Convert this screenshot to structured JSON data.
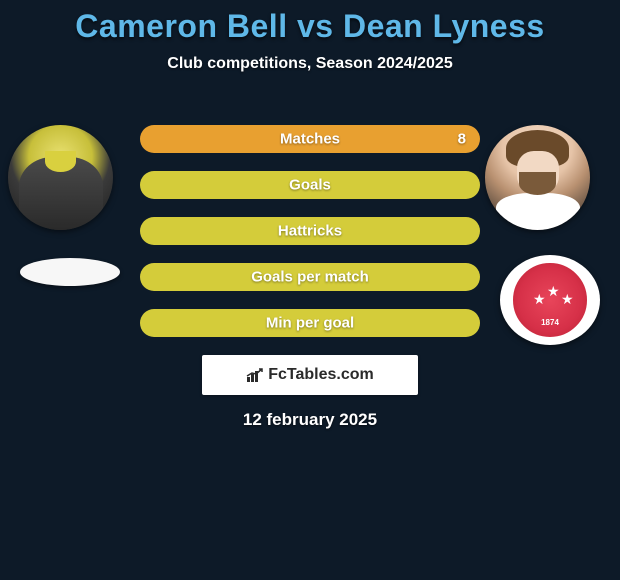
{
  "title": "Cameron Bell vs Dean Lyness",
  "subtitle": "Club competitions, Season 2024/2025",
  "date": "12 february 2025",
  "watermark": "FcTables.com",
  "colors": {
    "background": "#0d1a28",
    "title": "#5fb8e8",
    "subtitle": "#ffffff",
    "date": "#ffffff",
    "bar_default": "#d4cc3a",
    "bar_highlight": "#e8a030",
    "bar_text": "#ffffff"
  },
  "typography": {
    "title_fontsize": 32,
    "subtitle_fontsize": 16,
    "bar_label_fontsize": 15,
    "date_fontsize": 17,
    "watermark_fontsize": 16
  },
  "bars": [
    {
      "label": "Matches",
      "value_right": "8",
      "has_right_value": true,
      "highlight": true
    },
    {
      "label": "Goals",
      "value_right": "",
      "has_right_value": false,
      "highlight": false
    },
    {
      "label": "Hattricks",
      "value_right": "",
      "has_right_value": false,
      "highlight": false
    },
    {
      "label": "Goals per match",
      "value_right": "",
      "has_right_value": false,
      "highlight": false
    },
    {
      "label": "Min per goal",
      "value_right": "",
      "has_right_value": false,
      "highlight": false
    }
  ],
  "club_right": {
    "year": "1874"
  }
}
